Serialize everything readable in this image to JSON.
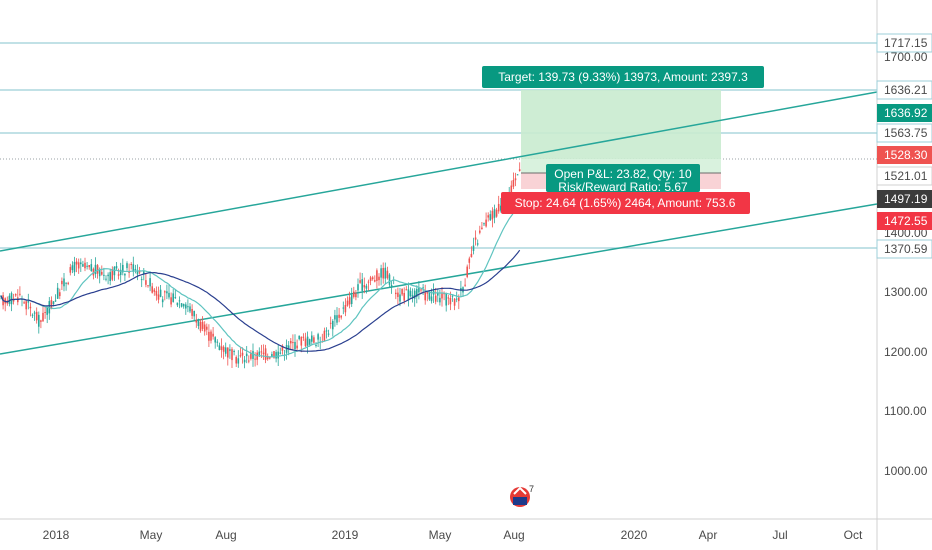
{
  "chart_data": {
    "type": "candlestick",
    "y_axis": {
      "ticks": [
        "1000.00",
        "1100.00",
        "1200.00",
        "1300.00",
        "1400.00",
        "1700.00"
      ],
      "range": [
        920,
        1780
      ]
    },
    "x_axis": {
      "ticks": [
        "2018",
        "May",
        "Aug",
        "2019",
        "May",
        "Aug",
        "2020",
        "Apr",
        "Jul",
        "Oct"
      ]
    },
    "horizontal_levels": [
      {
        "label": "1717.15",
        "bg": "#ffffff",
        "fg": "#4a4a4a",
        "line": "#9ccfd8"
      },
      {
        "label": "1636.21",
        "bg": "#ffffff",
        "fg": "#4a4a4a",
        "line": "#9ccfd8"
      },
      {
        "label": "1563.75",
        "bg": "#ffffff",
        "fg": "#4a4a4a",
        "line": "#9ccfd8"
      },
      {
        "label": "1370.59",
        "bg": "#ffffff",
        "fg": "#4a4a4a",
        "line": "#9ccfd8"
      }
    ],
    "axis_tags": [
      {
        "label": "1636.92",
        "bg": "#089981",
        "fg": "#ffffff"
      },
      {
        "label": "1528.30",
        "bg": "#ef5350",
        "fg": "#ffffff"
      },
      {
        "label": "1521.01",
        "bg": "#ffffff",
        "fg": "#4a4a4a"
      },
      {
        "label": "1497.19",
        "bg": "#3c3c3c",
        "fg": "#ffffff"
      },
      {
        "label": "1472.55",
        "bg": "#f23645",
        "fg": "#ffffff"
      }
    ],
    "trend_lines": [
      {
        "name": "upper channel",
        "color": "#26a69a"
      },
      {
        "name": "lower channel",
        "color": "#26a69a"
      }
    ],
    "position": {
      "target_label": "Target: 139.73 (9.33%) 13973, Amount: 2397.3",
      "stop_label": "Stop: 24.64 (1.65%) 2464, Amount: 753.6",
      "open_pnl_label": "Open P&L: 23.82, Qty: 10",
      "risk_reward_label": "Risk/Reward Ratio: 5.67"
    },
    "watermark_text": "7",
    "colors": {
      "up": "#26a69a",
      "down": "#ef5350",
      "ma_fast": "#5fc4c0",
      "ma_slow": "#2a3f8f",
      "profit_zone": "#c9ebcf",
      "loss_zone": "#f9d3d6"
    }
  }
}
